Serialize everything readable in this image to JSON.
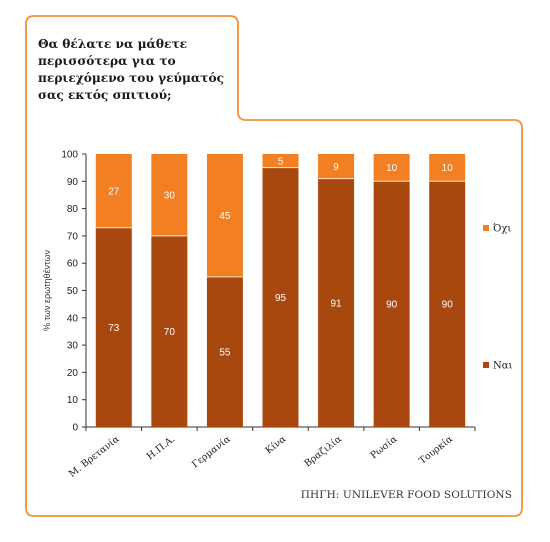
{
  "question": "Θα θέλατε να μάθετε περισσότερα για το περιεχόμενο του γεύματός σας εκτός σπιτιού;",
  "source": "ΠΗΓΗ: UNILEVER FOOD SOLUTIONS",
  "colors": {
    "frame": "#f39234",
    "nai": "#a8480f",
    "oxi": "#f27f22"
  },
  "chart_data": {
    "type": "bar",
    "stacked": true,
    "categories": [
      "Μ. Βρετανία",
      "Η.Π.Α.",
      "Γερμανία",
      "Κίνα",
      "Βραζιλία",
      "Ρωσία",
      "Τουρκία"
    ],
    "series": [
      {
        "name": "Ναι",
        "values": [
          73,
          70,
          55,
          95,
          91,
          90,
          90
        ]
      },
      {
        "name": "Όχι",
        "values": [
          27,
          30,
          45,
          5,
          9,
          10,
          10
        ]
      }
    ],
    "ylabel": "% των ερωτηθέντων",
    "ylim": [
      0,
      100
    ],
    "yticks": [
      0,
      10,
      20,
      30,
      40,
      50,
      60,
      70,
      80,
      90,
      100
    ],
    "grid": false,
    "legend": "right"
  }
}
